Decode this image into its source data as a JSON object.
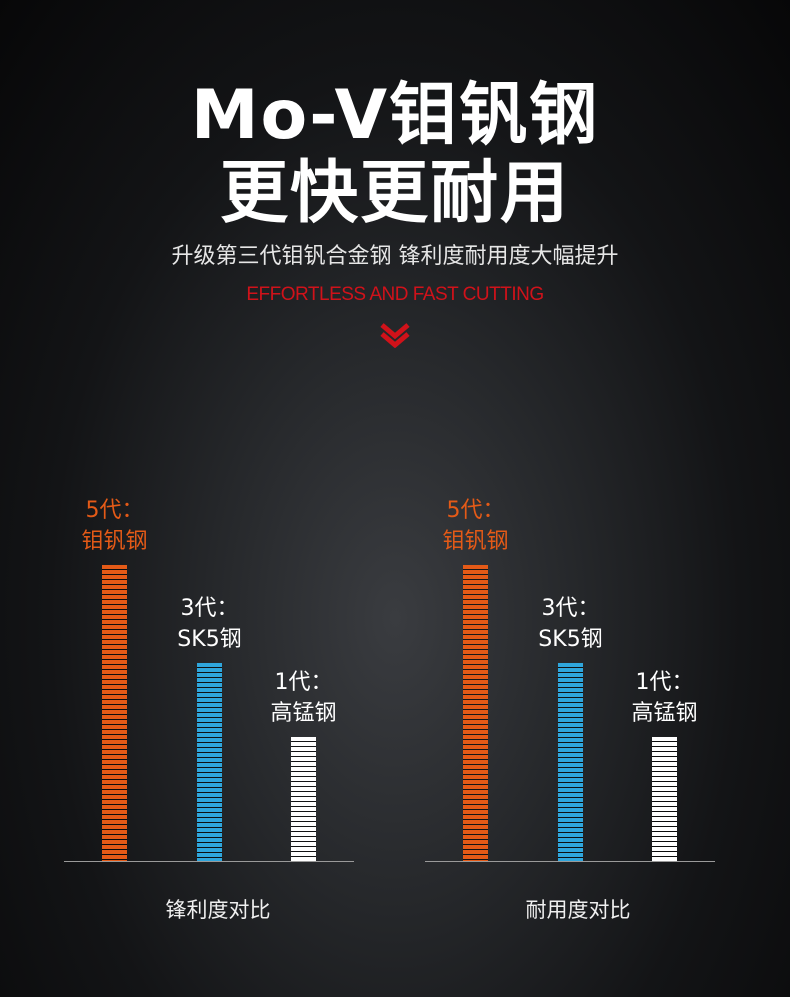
{
  "header": {
    "title_line1": "Mo-V钼钒钢",
    "title_line2": "更快更耐用",
    "subtitle": "升级第三代钼钒合金钢 锋利度耐用度大幅提升",
    "tagline": "EFFORTLESS AND FAST CUTTING"
  },
  "icons": {
    "chevron": "double-chevron-down-icon"
  },
  "colors": {
    "gen5": "#e45a17",
    "gen3": "#2fa6dc",
    "gen1": "#ffffff",
    "tagline": "#d0121a"
  },
  "chart_data": [
    {
      "type": "bar",
      "categories": [
        "5代：钼钒钢",
        "3代：SK5钢",
        "1代：高锰钢"
      ],
      "labels": [
        {
          "line1": "5代：",
          "line2": "钼钒钢"
        },
        {
          "line1": "3代：",
          "line2": "SK5钢"
        },
        {
          "line1": "1代：",
          "line2": "高锰钢"
        }
      ],
      "values": [
        100,
        67,
        42
      ],
      "xlabel": "锋利度对比",
      "ylim": [
        0,
        100
      ],
      "grid": false
    },
    {
      "type": "bar",
      "categories": [
        "5代：钼钒钢",
        "3代：SK5钢",
        "1代：高锰钢"
      ],
      "labels": [
        {
          "line1": "5代：",
          "line2": "钼钒钢"
        },
        {
          "line1": "3代：",
          "line2": "SK5钢"
        },
        {
          "line1": "1代：",
          "line2": "高锰钢"
        }
      ],
      "values": [
        100,
        67,
        42
      ],
      "xlabel": "耐用度对比",
      "ylim": [
        0,
        100
      ],
      "grid": false
    }
  ]
}
